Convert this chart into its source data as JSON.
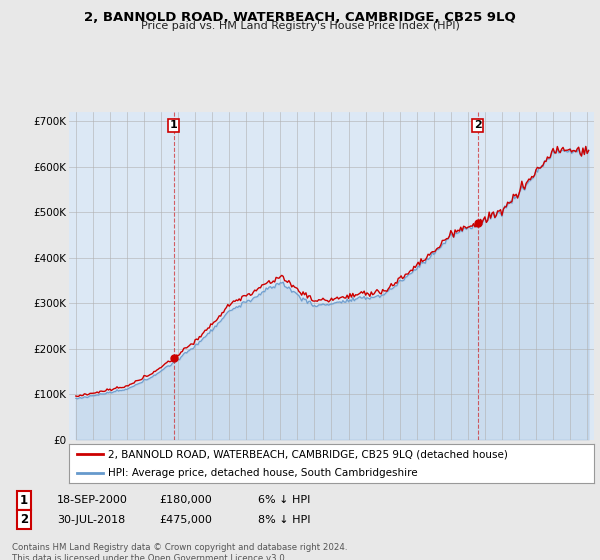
{
  "title": "2, BANNOLD ROAD, WATERBEACH, CAMBRIDGE, CB25 9LQ",
  "subtitle": "Price paid vs. HM Land Registry's House Price Index (HPI)",
  "ylim": [
    0,
    720000
  ],
  "yticks": [
    0,
    100000,
    200000,
    300000,
    400000,
    500000,
    600000,
    700000
  ],
  "ytick_labels": [
    "£0",
    "£100K",
    "£200K",
    "£300K",
    "£400K",
    "£500K",
    "£600K",
    "£700K"
  ],
  "bg_color": "#e8e8e8",
  "plot_bg_color": "#dce8f5",
  "red_color": "#cc0000",
  "blue_color": "#6699cc",
  "purchase1_year": 2000.72,
  "purchase1_price": 180000,
  "purchase2_year": 2018.58,
  "purchase2_price": 475000,
  "legend_line1": "2, BANNOLD ROAD, WATERBEACH, CAMBRIDGE, CB25 9LQ (detached house)",
  "legend_line2": "HPI: Average price, detached house, South Cambridgeshire",
  "annotation1_date": "18-SEP-2000",
  "annotation1_price": "£180,000",
  "annotation1_hpi": "6% ↓ HPI",
  "annotation2_date": "30-JUL-2018",
  "annotation2_price": "£475,000",
  "annotation2_hpi": "8% ↓ HPI",
  "footer": "Contains HM Land Registry data © Crown copyright and database right 2024.\nThis data is licensed under the Open Government Licence v3.0."
}
